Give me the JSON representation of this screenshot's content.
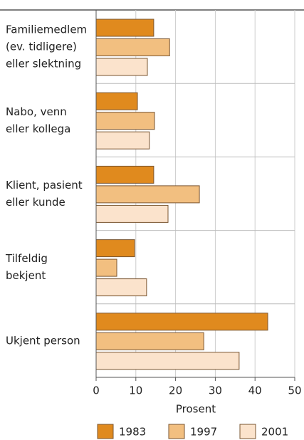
{
  "chart_data": {
    "type": "barh",
    "categories": [
      [
        "Familiemedlem",
        "(ev. tidligere)",
        "eller slektning"
      ],
      [
        "Nabo, venn",
        "eller kollega"
      ],
      [
        "Klient, pasient",
        "eller kunde"
      ],
      [
        "Tilfeldig",
        "bekjent"
      ],
      [
        "Ukjent person"
      ]
    ],
    "series": [
      {
        "name": "1983",
        "color": "#e08a1e",
        "values": [
          14.5,
          10.4,
          14.5,
          9.7,
          43.2
        ]
      },
      {
        "name": "1997",
        "color": "#f2bf80",
        "values": [
          18.5,
          14.7,
          26,
          5.2,
          27.1
        ]
      },
      {
        "name": "2001",
        "color": "#fbe3cc",
        "values": [
          12.9,
          13.4,
          18.1,
          12.7,
          36
        ]
      }
    ],
    "xlabel": "Prosent",
    "xlim": [
      0,
      50
    ],
    "xticks": [
      0,
      10,
      20,
      30,
      40,
      50
    ],
    "grid": true,
    "legend": "bottom"
  }
}
